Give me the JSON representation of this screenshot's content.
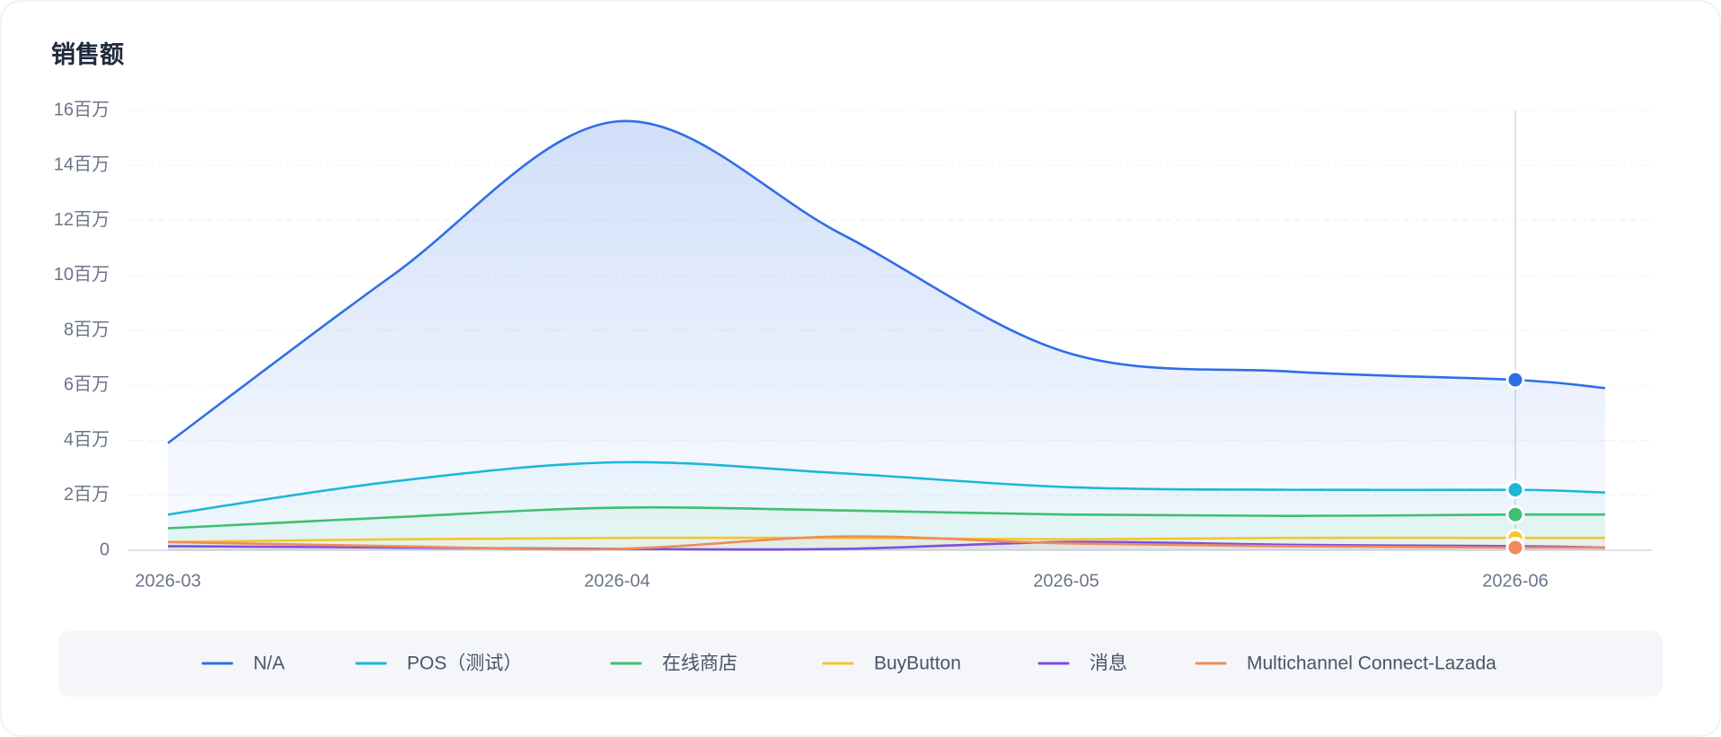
{
  "chart_data": {
    "type": "line",
    "title": "销售额",
    "categories": [
      "2026-03",
      null,
      "2026-04",
      null,
      "2026-05",
      null,
      "2026-06",
      null
    ],
    "series": [
      {
        "name": "N/A",
        "color": "#2f6ee8",
        "values": [
          3.9,
          10.0,
          15.6,
          11.5,
          7.2,
          6.5,
          6.2,
          5.9
        ]
      },
      {
        "name": "POS（测试）",
        "color": "#1cb8d6",
        "values": [
          1.3,
          2.5,
          3.2,
          2.8,
          2.3,
          2.2,
          2.2,
          2.1
        ]
      },
      {
        "name": "在线商店",
        "color": "#3fbf70",
        "values": [
          0.8,
          1.2,
          1.55,
          1.45,
          1.3,
          1.25,
          1.3,
          1.3
        ]
      },
      {
        "name": "BuyButton",
        "color": "#f5c52a",
        "values": [
          0.3,
          0.4,
          0.45,
          0.45,
          0.4,
          0.45,
          0.45,
          0.45
        ]
      },
      {
        "name": "消息",
        "color": "#7b4be6",
        "values": [
          0.15,
          0.1,
          0.05,
          0.05,
          0.3,
          0.2,
          0.15,
          0.1
        ]
      },
      {
        "name": "Multichannel Connect-Lazada",
        "color": "#f08a5d",
        "values": [
          0.3,
          0.15,
          0.05,
          0.5,
          0.25,
          0.15,
          0.1,
          0.1
        ]
      }
    ],
    "ylim": [
      0,
      16
    ],
    "yticks": [
      0,
      {
        "value": 2,
        "label": "2百万"
      },
      {
        "value": 4,
        "label": "4百万"
      },
      {
        "value": 6,
        "label": "6百万"
      },
      {
        "value": 8,
        "label": "8百万"
      },
      {
        "value": 10,
        "label": "10百万"
      },
      {
        "value": 12,
        "label": "12百万"
      },
      {
        "value": 14,
        "label": "14百万"
      },
      {
        "value": 16,
        "label": "16百万"
      }
    ],
    "grid": true,
    "legend": "bottom"
  }
}
